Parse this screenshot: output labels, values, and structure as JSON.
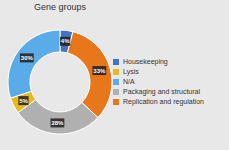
{
  "chart_data": {
    "type": "pie",
    "title": "Gene groups",
    "categories": [
      "Housekeeping",
      "Replication and regulation",
      "Packaging and structural",
      "Lysis",
      "N/A"
    ],
    "values": [
      4,
      33,
      28,
      5,
      30
    ],
    "value_labels": [
      "4%",
      "33%",
      "28%",
      "5%",
      "30%"
    ],
    "colors": [
      "#4472c4",
      "#e8761a",
      "#b0b0b0",
      "#e8b820",
      "#5aace8"
    ],
    "data_labels": true,
    "legend": "right"
  }
}
